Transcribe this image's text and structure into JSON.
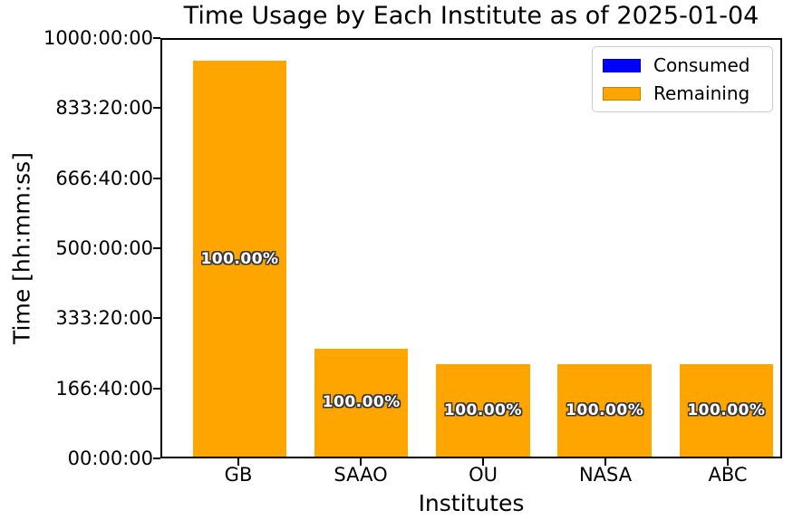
{
  "chart_data": {
    "type": "bar",
    "stacked": true,
    "title": "Time Usage by Each Institute as of 2025-01-04",
    "xlabel": "Institutes",
    "ylabel": "Time [hh:mm:ss]",
    "categories": [
      "GB",
      "SAAO",
      "OU",
      "NASA",
      "ABC"
    ],
    "series": [
      {
        "name": "Consumed",
        "color": "#0000ff",
        "values_hours": [
          0,
          0,
          0,
          0,
          0
        ]
      },
      {
        "name": "Remaining",
        "color": "#ffa500",
        "values_hours": [
          950,
          259,
          222,
          222,
          222
        ]
      }
    ],
    "bar_labels": [
      "100.00%",
      "100.00%",
      "100.00%",
      "100.00%",
      "100.00%"
    ],
    "yticks": [
      "00:00:00",
      "166:40:00",
      "333:20:00",
      "500:00:00",
      "666:40:00",
      "833:20:00",
      "1000:00:00"
    ],
    "ylim_hours": [
      0,
      1000
    ],
    "legend": {
      "position": "upper right"
    },
    "grid": false,
    "axis_color": "#000000",
    "background": "#ffffff"
  }
}
